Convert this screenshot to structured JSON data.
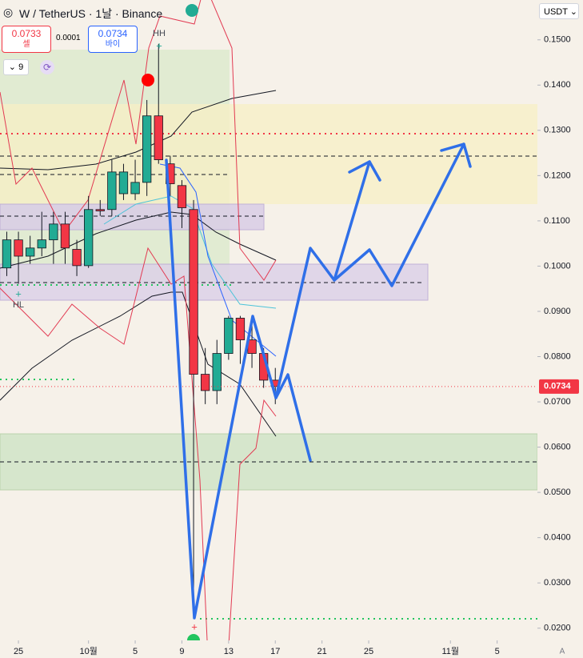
{
  "toolbar": {
    "title": "W / TetherUS · 1날 · Binance",
    "sell_price": "0.0733",
    "sell_label": "셀",
    "spread": "0.0001",
    "buy_price": "0.0734",
    "buy_label": "바이",
    "indicator_count": "9",
    "currency": "USDT",
    "auto_label": "A"
  },
  "chart_data": {
    "type": "candlestick",
    "x": [
      -1,
      0,
      1,
      2,
      3,
      4,
      5,
      6,
      7,
      8,
      9,
      10,
      11,
      12,
      13,
      14,
      15,
      16,
      17,
      18,
      19,
      20,
      21,
      22
    ],
    "open": [
      0.0996,
      0.1058,
      0.1022,
      0.104,
      0.1058,
      0.1093,
      0.1037,
      0.1001,
      0.1125,
      0.1125,
      0.116,
      0.116,
      0.1185,
      0.1332,
      0.1226,
      0.1178,
      0.1125,
      0.0761,
      0.0725,
      0.0807,
      0.0885,
      0.0837,
      0.0807,
      0.0748
    ],
    "high": [
      0.1076,
      0.1076,
      0.1067,
      0.112,
      0.112,
      0.112,
      0.1058,
      0.1155,
      0.1146,
      0.1235,
      0.1226,
      0.1235,
      0.1367,
      0.1491,
      0.1244,
      0.119,
      0.1146,
      0.0819,
      0.0837,
      0.089,
      0.089,
      0.0872,
      0.0819,
      0.0775
    ],
    "low": [
      0.0978,
      0.0961,
      0.1005,
      0.1022,
      0.1005,
      0.1005,
      0.0978,
      0.0996,
      0.1111,
      0.1111,
      0.1146,
      0.1146,
      0.1155,
      0.1226,
      0.1155,
      0.1084,
      0.0221,
      0.0695,
      0.0695,
      0.0793,
      0.0784,
      0.0775,
      0.0731,
      0.0695
    ],
    "close": [
      0.1058,
      0.1022,
      0.104,
      0.1058,
      0.1093,
      0.104,
      0.1001,
      0.1125,
      0.1122,
      0.1208,
      0.1208,
      0.1185,
      0.1332,
      0.1235,
      0.1182,
      0.1129,
      0.0761,
      0.0725,
      0.0807,
      0.0885,
      0.0837,
      0.0807,
      0.0748,
      0.0734
    ],
    "up_color": "#22ab94",
    "down_color": "#f23645",
    "last_price": 0.0734,
    "xlim": [
      -1.58,
      44.45
    ],
    "xticks": [
      {
        "value": 0,
        "label": "25"
      },
      {
        "value": 6,
        "label": "10월"
      },
      {
        "value": 10,
        "label": "5"
      },
      {
        "value": 14,
        "label": "9"
      },
      {
        "value": 18,
        "label": "13"
      },
      {
        "value": 22,
        "label": "17"
      },
      {
        "value": 26,
        "label": "21"
      },
      {
        "value": 30,
        "label": "25"
      },
      {
        "value": 37,
        "label": "11월"
      },
      {
        "value": 41,
        "label": "5"
      }
    ],
    "ylim": [
      0.0173,
      0.1588
    ],
    "yticks": [
      {
        "value": 0.02,
        "label": "0.0200"
      },
      {
        "value": 0.03,
        "label": "0.0300"
      },
      {
        "value": 0.04,
        "label": "0.0400"
      },
      {
        "value": 0.05,
        "label": "0.0500"
      },
      {
        "value": 0.06,
        "label": "0.0600"
      },
      {
        "value": 0.07,
        "label": "0.0700"
      },
      {
        "value": 0.08,
        "label": "0.0800"
      },
      {
        "value": 0.09,
        "label": "0.0900"
      },
      {
        "value": 0.1,
        "label": "0.1000"
      },
      {
        "value": 0.11,
        "label": "0.1100"
      },
      {
        "value": 0.12,
        "label": "0.1200"
      },
      {
        "value": 0.13,
        "label": "0.1300"
      },
      {
        "value": 0.14,
        "label": "0.1400"
      },
      {
        "value": 0.15,
        "label": "0.1500"
      }
    ],
    "annotations": [
      "HH",
      "HL"
    ]
  }
}
